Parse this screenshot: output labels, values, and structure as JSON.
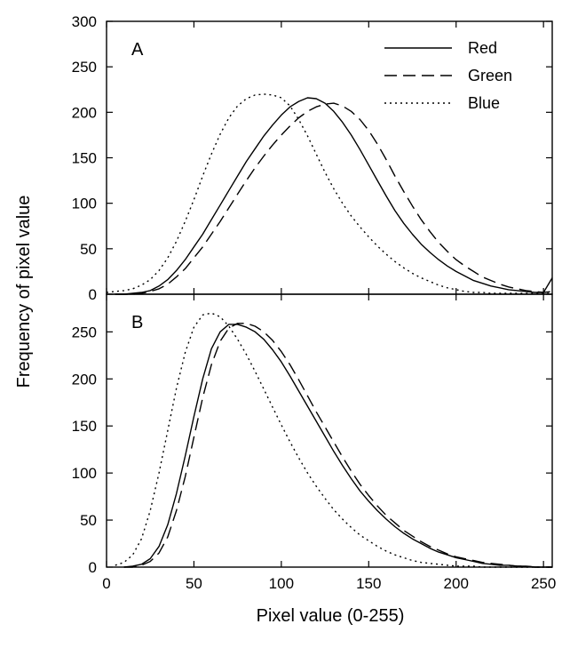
{
  "chart_data": {
    "type": "line",
    "xlabel": "Pixel value (0-255)",
    "ylabel": "Frequency of pixel value",
    "xlim": [
      0,
      255
    ],
    "x_ticks": [
      0,
      50,
      100,
      150,
      200,
      250
    ],
    "grid": false,
    "legend": {
      "placement": "top-right",
      "entries": [
        {
          "name": "Red",
          "style": "solid"
        },
        {
          "name": "Green",
          "style": "dashed"
        },
        {
          "name": "Blue",
          "style": "dotted"
        }
      ]
    },
    "panels": [
      {
        "label": "A",
        "ylim": [
          0,
          300
        ],
        "y_ticks": [
          0,
          50,
          100,
          150,
          200,
          250,
          300
        ],
        "series": [
          {
            "name": "Red",
            "style": "solid",
            "x": [
              5,
              10,
              15,
              20,
              25,
              30,
              35,
              40,
              45,
              50,
              55,
              60,
              65,
              70,
              75,
              80,
              85,
              90,
              95,
              100,
              105,
              110,
              115,
              120,
              125,
              130,
              135,
              140,
              145,
              150,
              155,
              160,
              165,
              170,
              175,
              180,
              185,
              190,
              195,
              200,
              205,
              210,
              215,
              220,
              225,
              230,
              235,
              240,
              245,
              250,
              255
            ],
            "y": [
              0,
              0,
              1,
              2,
              4,
              9,
              16,
              26,
              38,
              52,
              66,
              82,
              98,
              114,
              130,
              146,
              160,
              174,
              186,
              197,
              206,
              212,
              216,
              215,
              210,
              201,
              189,
              175,
              159,
              142,
              125,
              108,
              92,
              78,
              66,
              55,
              46,
              38,
              31,
              25,
              20,
              15,
              12,
              9,
              7,
              5,
              4,
              3,
              2,
              2,
              18
            ]
          },
          {
            "name": "Green",
            "style": "dashed",
            "x": [
              5,
              10,
              15,
              20,
              25,
              30,
              35,
              40,
              45,
              50,
              55,
              60,
              65,
              70,
              75,
              80,
              85,
              90,
              95,
              100,
              105,
              110,
              115,
              120,
              125,
              130,
              135,
              140,
              145,
              150,
              155,
              160,
              165,
              170,
              175,
              180,
              185,
              190,
              195,
              200,
              205,
              210,
              215,
              220,
              225,
              230,
              235,
              240,
              245,
              250,
              255
            ],
            "y": [
              0,
              0,
              0,
              1,
              3,
              6,
              11,
              19,
              28,
              40,
              52,
              66,
              80,
              95,
              110,
              125,
              139,
              152,
              164,
              175,
              185,
              194,
              201,
              206,
              209,
              210,
              207,
              201,
              192,
              180,
              165,
              148,
              130,
              113,
              97,
              82,
              69,
              57,
              47,
              38,
              31,
              25,
              19,
              15,
              11,
              8,
              6,
              4,
              3,
              2,
              3
            ]
          },
          {
            "name": "Blue",
            "style": "dotted",
            "x": [
              0,
              5,
              10,
              15,
              20,
              25,
              30,
              35,
              40,
              45,
              50,
              55,
              60,
              65,
              70,
              75,
              80,
              85,
              90,
              95,
              100,
              105,
              110,
              115,
              120,
              125,
              130,
              135,
              140,
              145,
              150,
              155,
              160,
              165,
              170,
              175,
              180,
              185,
              190,
              195,
              200,
              205,
              210,
              215,
              220,
              225,
              230,
              235,
              240,
              245,
              250,
              255
            ],
            "y": [
              2,
              3,
              4,
              6,
              10,
              16,
              26,
              40,
              58,
              80,
              104,
              130,
              154,
              176,
              194,
              207,
              215,
              219,
              220,
              219,
              216,
              207,
              192,
              174,
              154,
              134,
              116,
              100,
              86,
              74,
              63,
              53,
              44,
              36,
              29,
              23,
              18,
              14,
              10,
              7,
              5,
              3,
              2,
              2,
              1,
              1,
              1,
              1,
              1,
              1,
              1,
              1
            ]
          }
        ]
      },
      {
        "label": "B",
        "ylim": [
          0,
          290
        ],
        "y_ticks": [
          0,
          50,
          100,
          150,
          200,
          250
        ],
        "series": [
          {
            "name": "Red",
            "style": "solid",
            "x": [
              10,
              15,
              20,
              25,
              30,
              35,
              40,
              45,
              50,
              55,
              60,
              65,
              70,
              75,
              80,
              85,
              90,
              95,
              100,
              105,
              110,
              115,
              120,
              125,
              130,
              135,
              140,
              145,
              150,
              155,
              160,
              165,
              170,
              175,
              180,
              185,
              190,
              195,
              200,
              205,
              210,
              215,
              220,
              225,
              230,
              235,
              240,
              245,
              250,
              255
            ],
            "y": [
              0,
              1,
              3,
              9,
              22,
              45,
              78,
              118,
              160,
              200,
              232,
              250,
              258,
              258,
              255,
              250,
              242,
              231,
              218,
              203,
              187,
              171,
              155,
              139,
              123,
              108,
              94,
              81,
              70,
              60,
              51,
              43,
              36,
              30,
              25,
              20,
              16,
              13,
              10,
              8,
              6,
              4,
              3,
              2,
              2,
              1,
              1,
              0,
              0,
              0
            ]
          },
          {
            "name": "Green",
            "style": "dashed",
            "x": [
              10,
              15,
              20,
              25,
              30,
              35,
              40,
              45,
              50,
              55,
              60,
              65,
              70,
              75,
              80,
              85,
              90,
              95,
              100,
              105,
              110,
              115,
              120,
              125,
              130,
              135,
              140,
              145,
              150,
              155,
              160,
              165,
              170,
              175,
              180,
              185,
              190,
              195,
              200,
              205,
              210,
              215,
              220,
              225,
              230,
              235,
              240,
              245,
              250,
              255
            ],
            "y": [
              0,
              0,
              2,
              6,
              15,
              32,
              60,
              96,
              138,
              180,
              215,
              240,
              254,
              259,
              259,
              256,
              250,
              241,
              229,
              215,
              199,
              182,
              165,
              149,
              133,
              117,
              102,
              88,
              76,
              65,
              55,
              47,
              39,
              33,
              27,
              22,
              18,
              14,
              11,
              9,
              7,
              5,
              4,
              3,
              2,
              1,
              1,
              0,
              0,
              0
            ]
          },
          {
            "name": "Blue",
            "style": "dotted",
            "x": [
              5,
              10,
              15,
              20,
              25,
              30,
              35,
              40,
              45,
              50,
              55,
              60,
              65,
              70,
              75,
              80,
              85,
              90,
              95,
              100,
              105,
              110,
              115,
              120,
              125,
              130,
              135,
              140,
              145,
              150,
              155,
              160,
              165,
              170,
              175,
              180,
              185,
              190,
              195,
              200,
              205,
              210,
              215,
              220,
              225,
              230,
              235,
              240,
              245,
              250,
              255
            ],
            "y": [
              2,
              5,
              13,
              30,
              60,
              100,
              145,
              190,
              228,
              255,
              268,
              270,
              266,
              256,
              242,
              226,
              208,
              189,
              170,
              151,
              133,
              116,
              100,
              86,
              73,
              61,
              51,
              42,
              34,
              28,
              22,
              17,
              13,
              10,
              7,
              5,
              4,
              3,
              2,
              1,
              1,
              1,
              0,
              0,
              0,
              0,
              0,
              0,
              0,
              0,
              0
            ]
          }
        ]
      }
    ]
  }
}
